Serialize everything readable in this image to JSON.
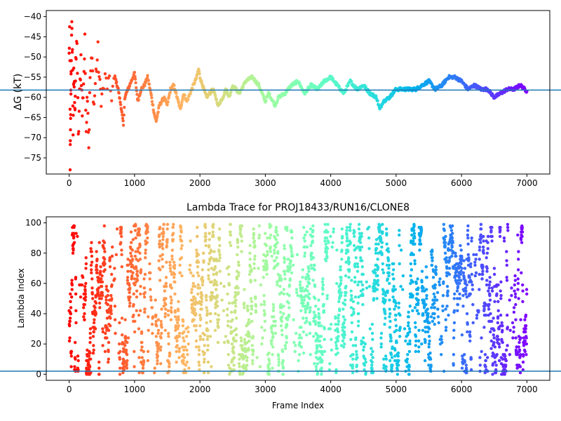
{
  "chart_data": [
    {
      "type": "scatter",
      "panel": "top",
      "title": "",
      "xlabel": "",
      "ylabel": "ΔG (kT)",
      "xlim": [
        -350,
        7350
      ],
      "ylim": [
        -79,
        -38.5
      ],
      "xticks": [
        0,
        1000,
        2000,
        3000,
        4000,
        5000,
        6000,
        7000
      ],
      "xtick_labels": [
        "0",
        "1000",
        "2000",
        "3000",
        "4000",
        "5000",
        "6000",
        "7000"
      ],
      "yticks": [
        -75,
        -70,
        -65,
        -60,
        -55,
        -50,
        -45,
        -40
      ],
      "ytick_labels": [
        "−75",
        "−70",
        "−65",
        "−60",
        "−55",
        "−50",
        "−45",
        "−40"
      ],
      "hline": -58.2,
      "hline_color": "#1f77b4",
      "colormap": "rainbow (reversed: red at frame 0, violet at frame 7000)",
      "trace_points": [
        [
          0,
          -50
        ],
        [
          10,
          -40
        ],
        [
          15,
          -76
        ],
        [
          20,
          -70
        ],
        [
          25,
          -60
        ],
        [
          30,
          -52
        ],
        [
          40,
          -43.5
        ],
        [
          50,
          -48
        ],
        [
          60,
          -68
        ],
        [
          70,
          -55
        ],
        [
          80,
          -58
        ],
        [
          90,
          -62
        ],
        [
          100,
          -53
        ],
        [
          120,
          -45
        ],
        [
          140,
          -71
        ],
        [
          160,
          -60
        ],
        [
          180,
          -50
        ],
        [
          200,
          -64
        ],
        [
          220,
          -56
        ],
        [
          240,
          -47
        ],
        [
          260,
          -67
        ],
        [
          280,
          -58
        ],
        [
          300,
          -72
        ],
        [
          320,
          -55
        ],
        [
          350,
          -51
        ],
        [
          380,
          -62
        ],
        [
          410,
          -54
        ],
        [
          440,
          -49
        ],
        [
          470,
          -58
        ],
        [
          500,
          -60
        ],
        [
          550,
          -56
        ],
        [
          600,
          -57
        ],
        [
          650,
          -59
        ],
        [
          700,
          -55
        ],
        [
          750,
          -58
        ],
        [
          800,
          -63
        ],
        [
          830,
          -67
        ],
        [
          850,
          -60
        ],
        [
          900,
          -58
        ],
        [
          950,
          -56
        ],
        [
          1000,
          -54
        ],
        [
          1050,
          -61
        ],
        [
          1100,
          -58
        ],
        [
          1150,
          -57
        ],
        [
          1200,
          -55
        ],
        [
          1250,
          -59
        ],
        [
          1300,
          -64
        ],
        [
          1330,
          -66
        ],
        [
          1380,
          -62
        ],
        [
          1450,
          -60
        ],
        [
          1500,
          -62
        ],
        [
          1550,
          -58
        ],
        [
          1600,
          -57
        ],
        [
          1650,
          -60
        ],
        [
          1700,
          -63
        ],
        [
          1750,
          -59
        ],
        [
          1800,
          -61
        ],
        [
          1850,
          -59
        ],
        [
          1900,
          -57
        ],
        [
          1950,
          -55
        ],
        [
          1980,
          -53
        ],
        [
          2000,
          -55
        ],
        [
          2100,
          -60
        ],
        [
          2150,
          -59
        ],
        [
          2200,
          -58
        ],
        [
          2280,
          -62
        ],
        [
          2350,
          -60
        ],
        [
          2400,
          -58
        ],
        [
          2450,
          -60
        ],
        [
          2500,
          -57
        ],
        [
          2600,
          -59
        ],
        [
          2700,
          -56
        ],
        [
          2800,
          -55
        ],
        [
          2900,
          -57
        ],
        [
          3000,
          -61
        ],
        [
          3050,
          -59
        ],
        [
          3150,
          -62
        ],
        [
          3200,
          -60
        ],
        [
          3300,
          -59
        ],
        [
          3400,
          -57
        ],
        [
          3500,
          -56
        ],
        [
          3600,
          -59
        ],
        [
          3700,
          -57
        ],
        [
          3800,
          -58
        ],
        [
          3900,
          -56
        ],
        [
          4000,
          -55
        ],
        [
          4100,
          -57
        ],
        [
          4200,
          -59
        ],
        [
          4300,
          -56
        ],
        [
          4400,
          -58
        ],
        [
          4500,
          -57
        ],
        [
          4600,
          -59
        ],
        [
          4700,
          -60
        ],
        [
          4750,
          -63
        ],
        [
          4800,
          -61
        ],
        [
          4900,
          -60
        ],
        [
          5000,
          -58
        ],
        [
          5100,
          -58
        ],
        [
          5200,
          -58
        ],
        [
          5300,
          -58
        ],
        [
          5400,
          -57
        ],
        [
          5500,
          -56
        ],
        [
          5600,
          -58
        ],
        [
          5700,
          -57
        ],
        [
          5800,
          -55
        ],
        [
          5900,
          -55
        ],
        [
          6000,
          -56
        ],
        [
          6100,
          -58
        ],
        [
          6200,
          -57
        ],
        [
          6300,
          -58
        ],
        [
          6400,
          -58
        ],
        [
          6500,
          -60
        ],
        [
          6600,
          -59
        ],
        [
          6700,
          -58
        ],
        [
          6800,
          -58
        ],
        [
          6900,
          -57
        ],
        [
          7000,
          -58.5
        ]
      ]
    },
    {
      "type": "scatter",
      "panel": "bottom",
      "title": "Lambda Trace for PROJ18433/RUN16/CLONE8",
      "xlabel": "Frame Index",
      "ylabel": "Lambda Index",
      "xlim": [
        -350,
        7350
      ],
      "ylim": [
        -4,
        104
      ],
      "xticks": [
        0,
        1000,
        2000,
        3000,
        4000,
        5000,
        6000,
        7000
      ],
      "xtick_labels": [
        "0",
        "1000",
        "2000",
        "3000",
        "4000",
        "5000",
        "6000",
        "7000"
      ],
      "yticks": [
        0,
        20,
        40,
        60,
        80,
        100
      ],
      "ytick_labels": [
        "0",
        "20",
        "40",
        "60",
        "80",
        "100"
      ],
      "hline": 2,
      "hline_color": "#1f77b4",
      "colormap": "rainbow (reversed: red at frame 0, violet at frame 7000)",
      "frame_range": [
        0,
        7000
      ],
      "lambda_range": [
        0,
        99
      ]
    }
  ]
}
